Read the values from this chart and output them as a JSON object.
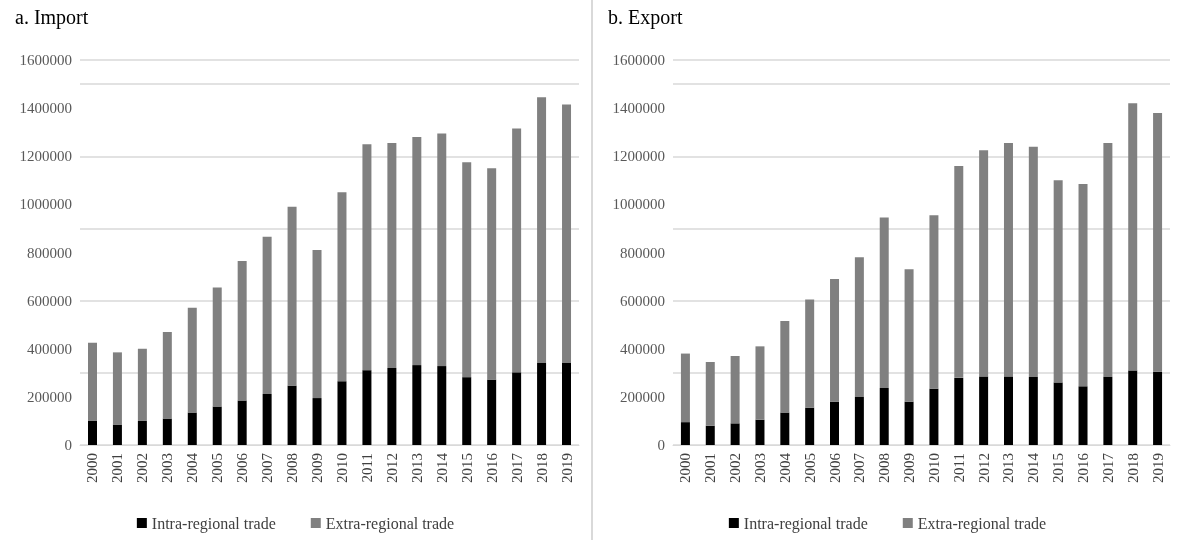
{
  "chart_data": [
    {
      "type": "bar",
      "title": "a. Import",
      "stacked": true,
      "grid": "y",
      "legend": "bottom",
      "categories": [
        "2000",
        "2001",
        "2002",
        "2003",
        "2004",
        "2005",
        "2006",
        "2007",
        "2008",
        "2009",
        "2010",
        "2011",
        "2012",
        "2013",
        "2014",
        "2015",
        "2016",
        "2017",
        "2018",
        "2019"
      ],
      "ylim": [
        0,
        1600000
      ],
      "yticks": [
        0,
        200000,
        400000,
        600000,
        800000,
        1000000,
        1200000,
        1400000,
        1600000
      ],
      "series": [
        {
          "name": "Intra-regional trade",
          "color": "#000000",
          "values": [
            100000,
            85000,
            100000,
            110000,
            135000,
            160000,
            185000,
            212000,
            247000,
            195000,
            265000,
            311000,
            320000,
            332000,
            328000,
            282000,
            272000,
            302000,
            341000,
            341000
          ]
        },
        {
          "name": "Extra-regional trade",
          "color": "#808080",
          "values": [
            325000,
            300000,
            300000,
            360000,
            435000,
            495000,
            580000,
            653000,
            743000,
            615000,
            785000,
            939000,
            935000,
            948000,
            967000,
            893000,
            878000,
            1013000,
            1104000,
            1074000
          ]
        }
      ]
    },
    {
      "type": "bar",
      "title": "b. Export",
      "stacked": true,
      "grid": "y",
      "legend": "bottom",
      "categories": [
        "2000",
        "2001",
        "2002",
        "2003",
        "2004",
        "2005",
        "2006",
        "2007",
        "2008",
        "2009",
        "2010",
        "2011",
        "2012",
        "2013",
        "2014",
        "2015",
        "2016",
        "2017",
        "2018",
        "2019"
      ],
      "ylim": [
        0,
        1600000
      ],
      "yticks": [
        0,
        200000,
        400000,
        600000,
        800000,
        1000000,
        1200000,
        1400000,
        1600000
      ],
      "series": [
        {
          "name": "Intra-regional trade",
          "color": "#000000",
          "values": [
            95000,
            80000,
            90000,
            105000,
            135000,
            155000,
            180000,
            200000,
            237000,
            180000,
            234000,
            279000,
            285000,
            285000,
            283000,
            260000,
            244000,
            283000,
            310000,
            305000
          ]
        },
        {
          "name": "Extra-regional trade",
          "color": "#808080",
          "values": [
            285000,
            265000,
            280000,
            305000,
            380000,
            450000,
            510000,
            580000,
            708000,
            550000,
            721000,
            881000,
            940000,
            970000,
            957000,
            840000,
            841000,
            972000,
            1110000,
            1075000
          ]
        }
      ]
    }
  ]
}
